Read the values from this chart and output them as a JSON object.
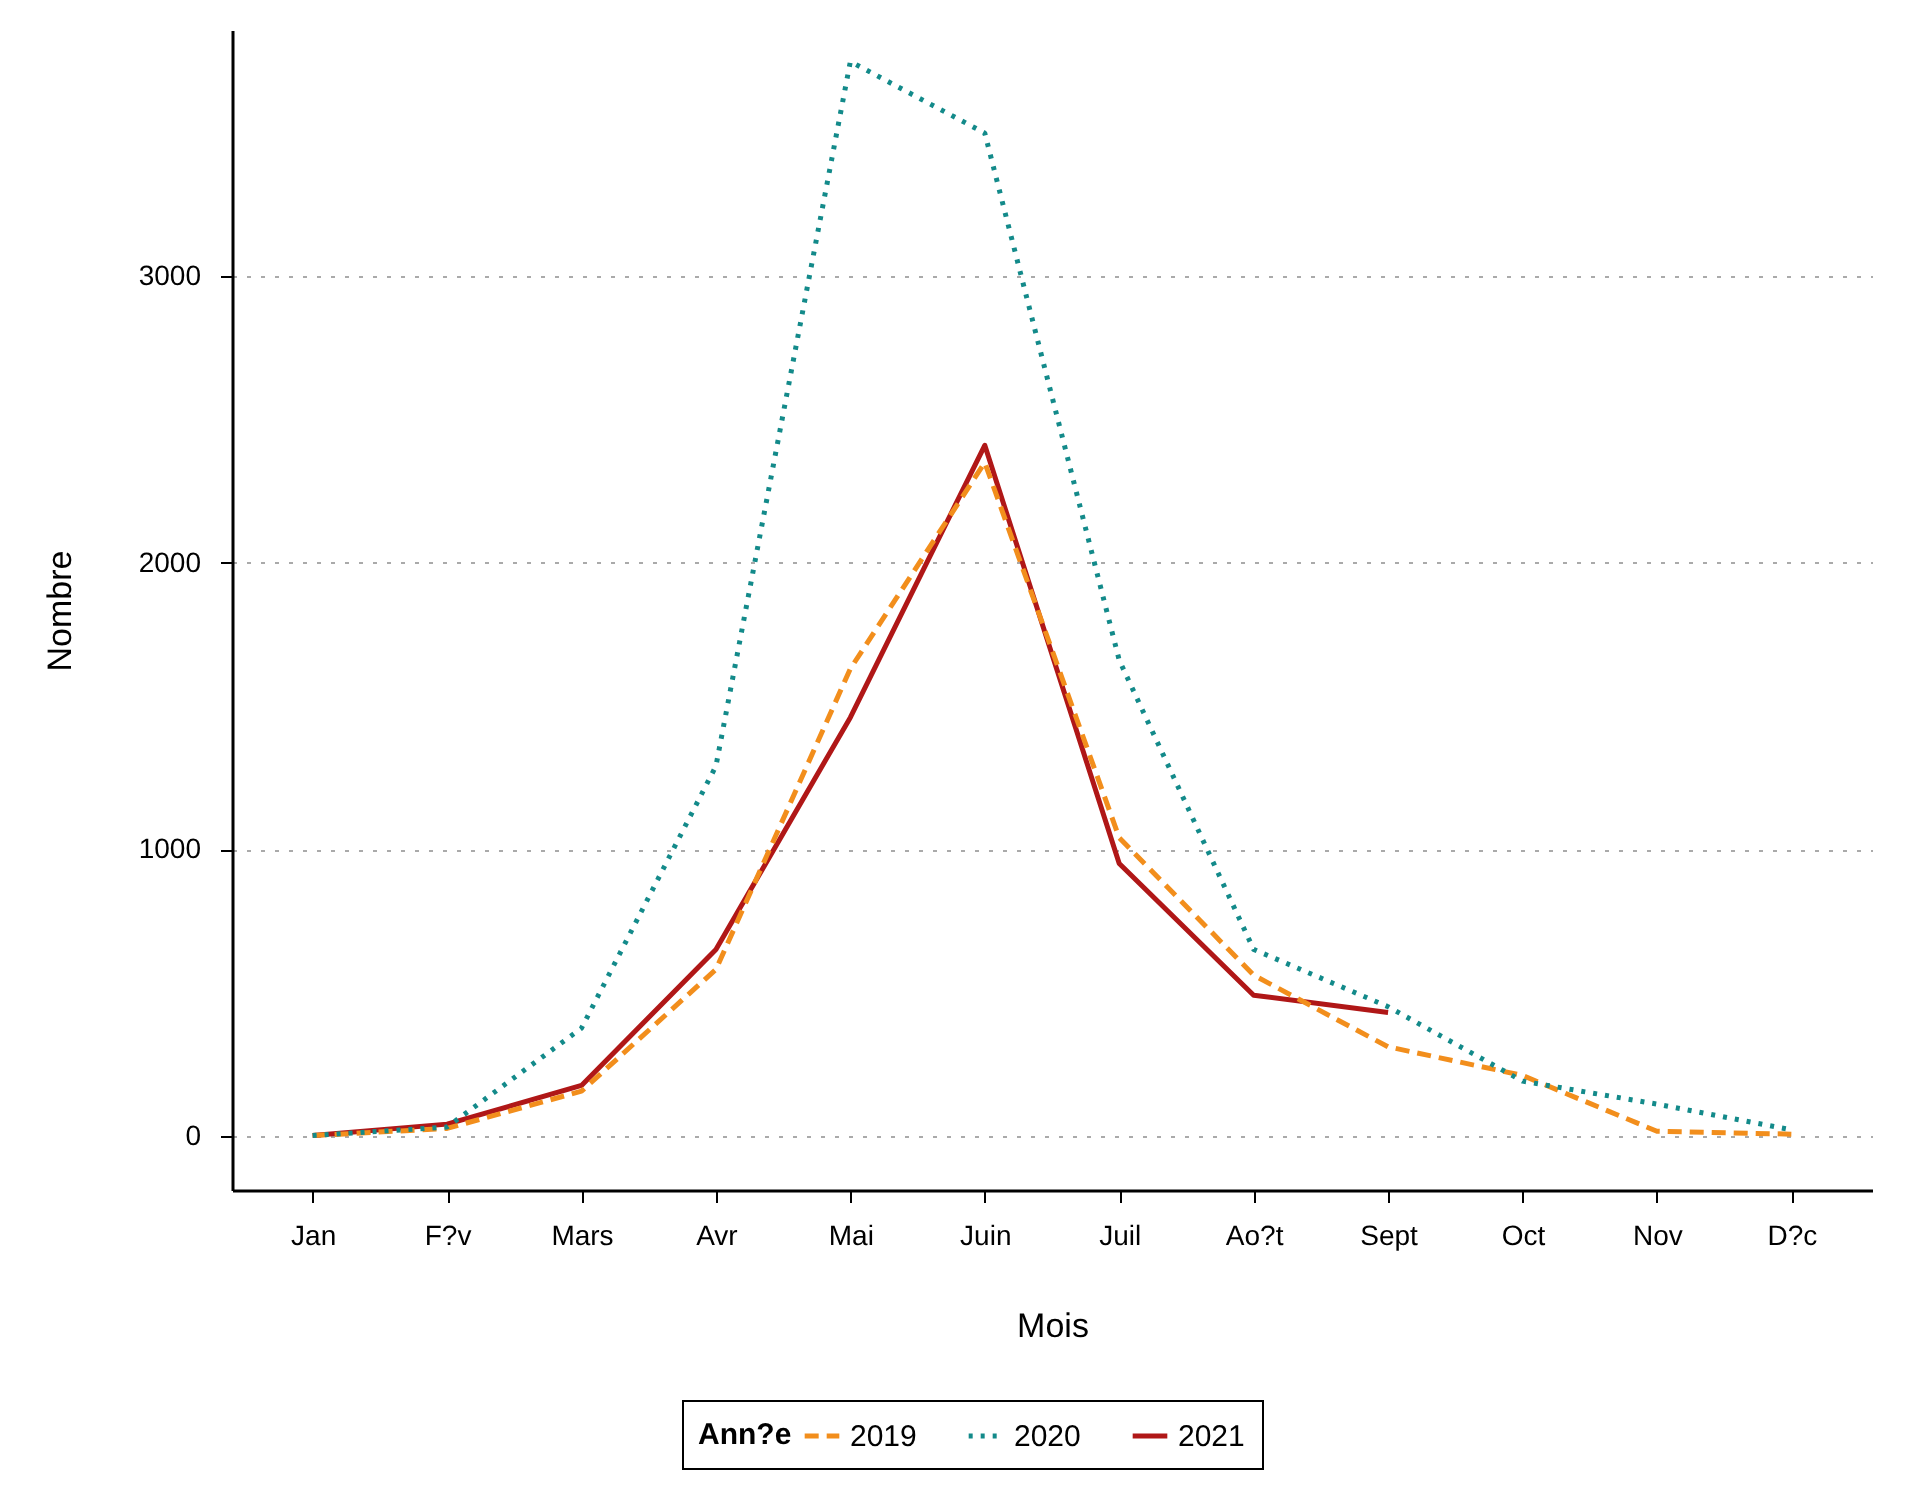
{
  "chart_data": {
    "type": "line",
    "xlabel": "Mois",
    "ylabel": "Nombre",
    "legend_title": "Ann?e",
    "categories": [
      "Jan",
      "F?v",
      "Mars",
      "Avr",
      "Mai",
      "Juin",
      "Juil",
      "Ao?t",
      "Sept",
      "Oct",
      "Nov",
      "D?c"
    ],
    "series": [
      {
        "name": "2019",
        "color": "#f28e1c",
        "line_style": "dashed",
        "values": [
          0,
          25,
          155,
          580,
          1630,
          2350,
          1040,
          560,
          310,
          210,
          15,
          5
        ]
      },
      {
        "name": "2020",
        "color": "#138a8a",
        "line_style": "dotted",
        "values": [
          0,
          30,
          375,
          1290,
          3750,
          3500,
          1660,
          650,
          450,
          190,
          110,
          20
        ]
      },
      {
        "name": "2021",
        "color": "#b01717",
        "line_style": "solid",
        "values": [
          0,
          40,
          175,
          650,
          1460,
          2410,
          950,
          490,
          430,
          null,
          null,
          null
        ]
      }
    ],
    "ylim": [
      -190,
      3860
    ],
    "yticks": [
      0,
      1000,
      2000,
      3000
    ],
    "grid": "y",
    "legend": "bottom"
  }
}
